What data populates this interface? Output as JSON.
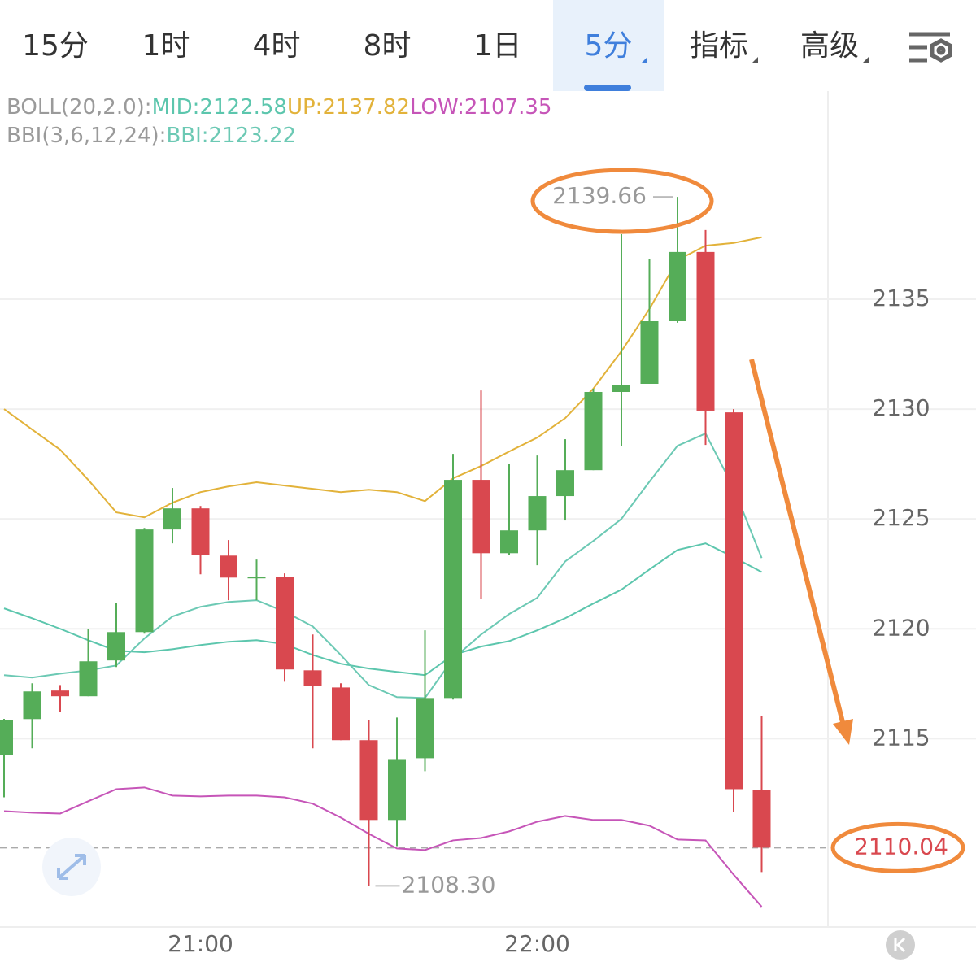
{
  "tabs": [
    "15分",
    "1时",
    "4时",
    "8时",
    "1日",
    "5分",
    "指标",
    "高级"
  ],
  "active_tab": 5,
  "chart_data": {
    "type": "candlestick",
    "categories": [
      null,
      null,
      null,
      null,
      null,
      null,
      null,
      "21:00",
      null,
      null,
      null,
      null,
      null,
      null,
      null,
      null,
      null,
      null,
      null,
      "22:00",
      null,
      null,
      null,
      null,
      null,
      null,
      null,
      null
    ],
    "open": [
      2114.26,
      2115.89,
      2117.19,
      2116.93,
      2118.56,
      2119.85,
      2124.52,
      2125.48,
      2123.33,
      2122.33,
      2122.37,
      2118.11,
      2117.33,
      2114.93,
      2111.3,
      2114.11,
      2116.85,
      2126.78,
      2123.44,
      2124.48,
      2126.04,
      2127.22,
      2130.78,
      2131.15,
      2134.0,
      2137.15,
      2129.85,
      2112.67
    ],
    "high": [
      2115.9,
      2117.52,
      2117.44,
      2120.0,
      2121.19,
      2124.59,
      2126.41,
      2125.59,
      2124.04,
      2123.15,
      2122.52,
      2119.74,
      2117.52,
      2115.85,
      2115.96,
      2119.93,
      2127.96,
      2130.85,
      2127.52,
      2127.89,
      2128.63,
      2130.93,
      2137.96,
      2136.85,
      2139.66,
      2138.15,
      2130.0,
      2116.04
    ],
    "low": [
      2112.33,
      2114.56,
      2116.22,
      2116.93,
      2118.26,
      2119.78,
      2123.89,
      2122.48,
      2121.3,
      2121.3,
      2117.59,
      2114.56,
      2114.93,
      2108.3,
      2110.11,
      2113.52,
      2116.78,
      2121.37,
      2123.37,
      2122.89,
      2124.93,
      2127.22,
      2128.33,
      2131.15,
      2133.93,
      2128.37,
      2111.67,
      2108.93
    ],
    "close": [
      2115.85,
      2117.15,
      2116.93,
      2118.52,
      2119.85,
      2124.52,
      2125.48,
      2123.37,
      2122.33,
      2122.37,
      2118.15,
      2117.41,
      2114.93,
      2111.3,
      2114.07,
      2116.85,
      2126.78,
      2123.44,
      2124.48,
      2126.04,
      2127.22,
      2130.78,
      2131.11,
      2134.0,
      2137.15,
      2129.93,
      2112.7,
      2110.04
    ],
    "up_color": "#55ad58",
    "down_color": "#d9484f",
    "series": [
      {
        "name": "UP",
        "color": "#e2b23a",
        "values": [
          2130.0,
          2129.07,
          2128.15,
          2126.78,
          2125.3,
          2125.07,
          2125.74,
          2126.22,
          2126.48,
          2126.67,
          2126.52,
          2126.37,
          2126.22,
          2126.33,
          2126.22,
          2125.81,
          2126.85,
          2127.41,
          2128.07,
          2128.7,
          2129.59,
          2130.93,
          2132.63,
          2134.56,
          2136.78,
          2137.44,
          2137.56,
          2137.82
        ]
      },
      {
        "name": "MID",
        "color": "#5cc6ad",
        "values": [
          2120.93,
          2120.48,
          2120.0,
          2119.48,
          2119.0,
          2118.93,
          2119.07,
          2119.26,
          2119.41,
          2119.48,
          2119.3,
          2118.81,
          2118.41,
          2118.19,
          2118.04,
          2117.89,
          2118.81,
          2119.19,
          2119.44,
          2119.93,
          2120.48,
          2121.15,
          2121.78,
          2122.7,
          2123.59,
          2123.89,
          2123.26,
          2122.58
        ]
      },
      {
        "name": "LOW",
        "color": "#c655b8",
        "values": [
          2111.7,
          2111.63,
          2111.59,
          2112.15,
          2112.7,
          2112.78,
          2112.41,
          2112.37,
          2112.41,
          2112.41,
          2112.33,
          2112.04,
          2111.41,
          2110.67,
          2110.0,
          2109.93,
          2110.37,
          2110.48,
          2110.78,
          2111.22,
          2111.48,
          2111.3,
          2111.3,
          2111.04,
          2110.41,
          2110.37,
          2108.81,
          2107.35
        ]
      },
      {
        "name": "BBI",
        "color": "#6cc9b4",
        "values": [
          2117.89,
          2117.78,
          2117.96,
          2118.11,
          2118.33,
          2119.56,
          2120.56,
          2121.0,
          2121.22,
          2121.3,
          2120.78,
          2120.11,
          2118.81,
          2117.44,
          2116.89,
          2116.85,
          2118.63,
          2119.74,
          2120.67,
          2121.41,
          2123.07,
          2124.0,
          2125.0,
          2126.7,
          2128.33,
          2128.89,
          2126.41,
          2123.22
        ]
      }
    ],
    "legend_lines": [
      [
        {
          "text": "BOLL(20,2.0):",
          "color": "#9a9a9a"
        },
        {
          "text": "MID:2122.58",
          "color": "#5cc6ad"
        },
        {
          "text": "UP:2137.82",
          "color": "#e2b23a"
        },
        {
          "text": "LOW:2107.35",
          "color": "#c655b8"
        }
      ],
      [
        {
          "text": "BBI(3,6,12,24):",
          "color": "#9a9a9a"
        },
        {
          "text": "BBI:2123.22",
          "color": "#6cc9b4"
        }
      ]
    ],
    "annotations": [
      {
        "text": "2139.66",
        "value": 2139.66,
        "index": 24
      },
      {
        "text": "2108.30",
        "value": 2108.3,
        "index": 13
      },
      {
        "text": "2110.04",
        "value": 2110.04,
        "index": 27
      }
    ],
    "ylim": [
      2106.5,
      2144.4
    ],
    "yticks": [
      2115,
      2120,
      2125,
      2130,
      2135
    ],
    "grid": true
  }
}
